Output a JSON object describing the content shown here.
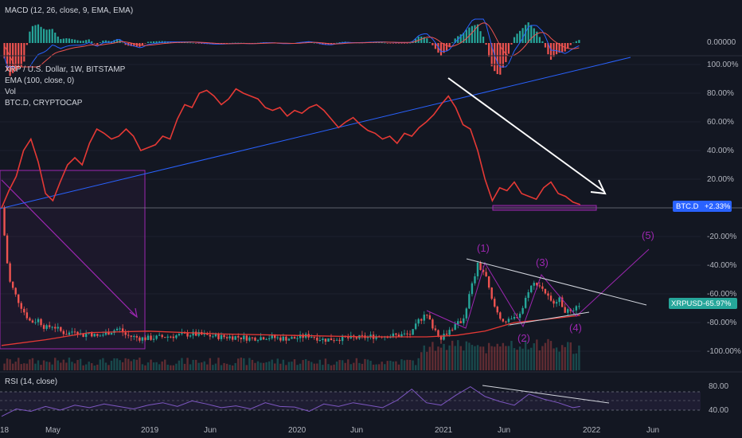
{
  "colors": {
    "background": "#131722",
    "grid": "#1e222d",
    "up": "#26a69a",
    "down": "#ef5350",
    "btcd_line": "#e53935",
    "ema_line": "#e53935",
    "trendline_blue": "#2962ff",
    "arrow_white": "#ffffff",
    "wave_purple": "#9c27b0",
    "rsi_line": "#7e57c2",
    "macd_line": "#2962ff",
    "signal_line": "#ef5350",
    "tag_btcd": "#2962ff",
    "tag_xrp": "#26a69a"
  },
  "macd_panel": {
    "legend": "MACD (12, 26, close, 9, EMA, EMA)",
    "axis_label": "0.00000"
  },
  "main_panel": {
    "legend": [
      "XRP / U.S. Dollar, 1W, BITSTAMP",
      "EMA (100, close, 0)",
      "Vol",
      "BTC.D, CRYPTOCAP"
    ],
    "y_ticks": [
      "100.00%",
      "80.00%",
      "60.00%",
      "40.00%",
      "20.00%",
      "-20.00%",
      "-40.00%",
      "-60.00%",
      "-80.00%",
      "-100.00%"
    ],
    "tag_btcd": {
      "name": "BTC.D",
      "value": "+2.33%"
    },
    "tag_xrp": {
      "name": "XRPUSD",
      "value": "-65.97%"
    },
    "waves": [
      "(1)",
      "(2)",
      "(3)",
      "(4)",
      "(5)"
    ]
  },
  "rsi_panel": {
    "legend": "RSI (14, close)",
    "ticks": [
      "80.00",
      "40.00"
    ]
  },
  "x_axis": {
    "labels": [
      "18",
      "May",
      "2019",
      "Jun",
      "2020",
      "Jun",
      "2021",
      "Jun",
      "2022",
      "Jun"
    ]
  },
  "chart_data": {
    "type": "line",
    "x_domain": [
      2018.0,
      2022.55
    ],
    "y_range_percent": [
      -110,
      100
    ],
    "btcd_series": {
      "x": [
        2018.0,
        2018.05,
        2018.1,
        2018.15,
        2018.2,
        2018.25,
        2018.3,
        2018.35,
        2018.4,
        2018.45,
        2018.5,
        2018.55,
        2018.6,
        2018.65,
        2018.7,
        2018.75,
        2018.8,
        2018.85,
        2018.9,
        2018.95,
        2019.0,
        2019.05,
        2019.1,
        2019.15,
        2019.2,
        2019.25,
        2019.3,
        2019.35,
        2019.4,
        2019.45,
        2019.5,
        2019.55,
        2019.6,
        2019.65,
        2019.7,
        2019.75,
        2019.8,
        2019.85,
        2019.9,
        2019.95,
        2020.0,
        2020.05,
        2020.1,
        2020.15,
        2020.2,
        2020.25,
        2020.3,
        2020.35,
        2020.4,
        2020.45,
        2020.5,
        2020.55,
        2020.6,
        2020.65,
        2020.7,
        2020.75,
        2020.8,
        2020.85,
        2020.9,
        2020.95,
        2021.0,
        2021.05,
        2021.1,
        2021.15,
        2021.2,
        2021.25,
        2021.3,
        2021.35,
        2021.4,
        2021.45,
        2021.5,
        2021.55,
        2021.6,
        2021.65,
        2021.7,
        2021.75,
        2021.8,
        2021.85,
        2021.9,
        2021.95
      ],
      "y": [
        0,
        12,
        22,
        40,
        48,
        32,
        10,
        5,
        18,
        30,
        35,
        30,
        45,
        55,
        52,
        48,
        50,
        55,
        50,
        40,
        42,
        44,
        50,
        48,
        62,
        72,
        70,
        80,
        82,
        78,
        72,
        76,
        83,
        80,
        78,
        76,
        70,
        68,
        70,
        64,
        68,
        66,
        70,
        72,
        68,
        62,
        56,
        60,
        63,
        58,
        54,
        52,
        48,
        50,
        45,
        52,
        50,
        56,
        60,
        65,
        72,
        78,
        70,
        58,
        55,
        40,
        20,
        5,
        14,
        12,
        18,
        10,
        8,
        6,
        14,
        18,
        10,
        8,
        4,
        2.3
      ]
    },
    "xrp_series": {
      "x": [
        2018.0,
        2018.05,
        2018.1,
        2018.15,
        2018.2,
        2018.25,
        2018.3,
        2018.35,
        2018.4,
        2018.45,
        2018.5,
        2018.55,
        2018.6,
        2018.65,
        2018.7,
        2018.75,
        2018.8,
        2018.85,
        2018.9,
        2018.95,
        2019.0,
        2019.1,
        2019.2,
        2019.3,
        2019.4,
        2019.5,
        2019.6,
        2019.7,
        2019.8,
        2019.9,
        2020.0,
        2020.1,
        2020.2,
        2020.3,
        2020.4,
        2020.5,
        2020.6,
        2020.7,
        2020.8,
        2020.85,
        2020.9,
        2020.95,
        2021.0,
        2021.05,
        2021.1,
        2021.15,
        2021.2,
        2021.25,
        2021.3,
        2021.35,
        2021.4,
        2021.45,
        2021.5,
        2021.55,
        2021.6,
        2021.65,
        2021.7,
        2021.75,
        2021.8,
        2021.85,
        2021.9,
        2021.95
      ],
      "y": [
        0,
        -50,
        -62,
        -72,
        -80,
        -78,
        -84,
        -82,
        -86,
        -88,
        -85,
        -89,
        -87,
        -90,
        -88,
        -86,
        -84,
        -89,
        -90,
        -91,
        -91,
        -90,
        -89,
        -88,
        -89,
        -90,
        -90,
        -91,
        -90,
        -91,
        -91,
        -89,
        -92,
        -91,
        -91,
        -90,
        -89,
        -89,
        -88,
        -78,
        -75,
        -84,
        -90,
        -86,
        -82,
        -78,
        -58,
        -40,
        -46,
        -66,
        -76,
        -80,
        -77,
        -72,
        -56,
        -52,
        -57,
        -66,
        -63,
        -72,
        -74,
        -66
      ]
    },
    "ema_series": {
      "x": [
        2018.0,
        2018.3,
        2018.6,
        2019.0,
        2019.5,
        2020.0,
        2020.5,
        2020.9,
        2021.1,
        2021.3,
        2021.5,
        2021.7,
        2021.95
      ],
      "y": [
        -96,
        -92,
        -87,
        -86,
        -88,
        -89,
        -90,
        -90,
        -89,
        -86,
        -80,
        -78,
        -75
      ]
    },
    "rsi_series": {
      "x": [
        2018.0,
        2018.1,
        2018.2,
        2018.3,
        2018.4,
        2018.5,
        2018.6,
        2018.7,
        2018.8,
        2018.9,
        2019.0,
        2019.1,
        2019.2,
        2019.3,
        2019.4,
        2019.5,
        2019.6,
        2019.7,
        2019.8,
        2019.9,
        2020.0,
        2020.1,
        2020.2,
        2020.3,
        2020.4,
        2020.5,
        2020.6,
        2020.7,
        2020.8,
        2020.9,
        2021.0,
        2021.1,
        2021.2,
        2021.3,
        2021.4,
        2021.5,
        2021.6,
        2021.7,
        2021.8,
        2021.9,
        2021.95
      ],
      "y": [
        30,
        42,
        38,
        46,
        40,
        48,
        44,
        50,
        46,
        42,
        48,
        52,
        46,
        55,
        50,
        44,
        47,
        42,
        52,
        46,
        45,
        38,
        50,
        46,
        52,
        48,
        44,
        56,
        74,
        52,
        48,
        64,
        78,
        62,
        54,
        48,
        66,
        58,
        52,
        44,
        46
      ]
    }
  }
}
